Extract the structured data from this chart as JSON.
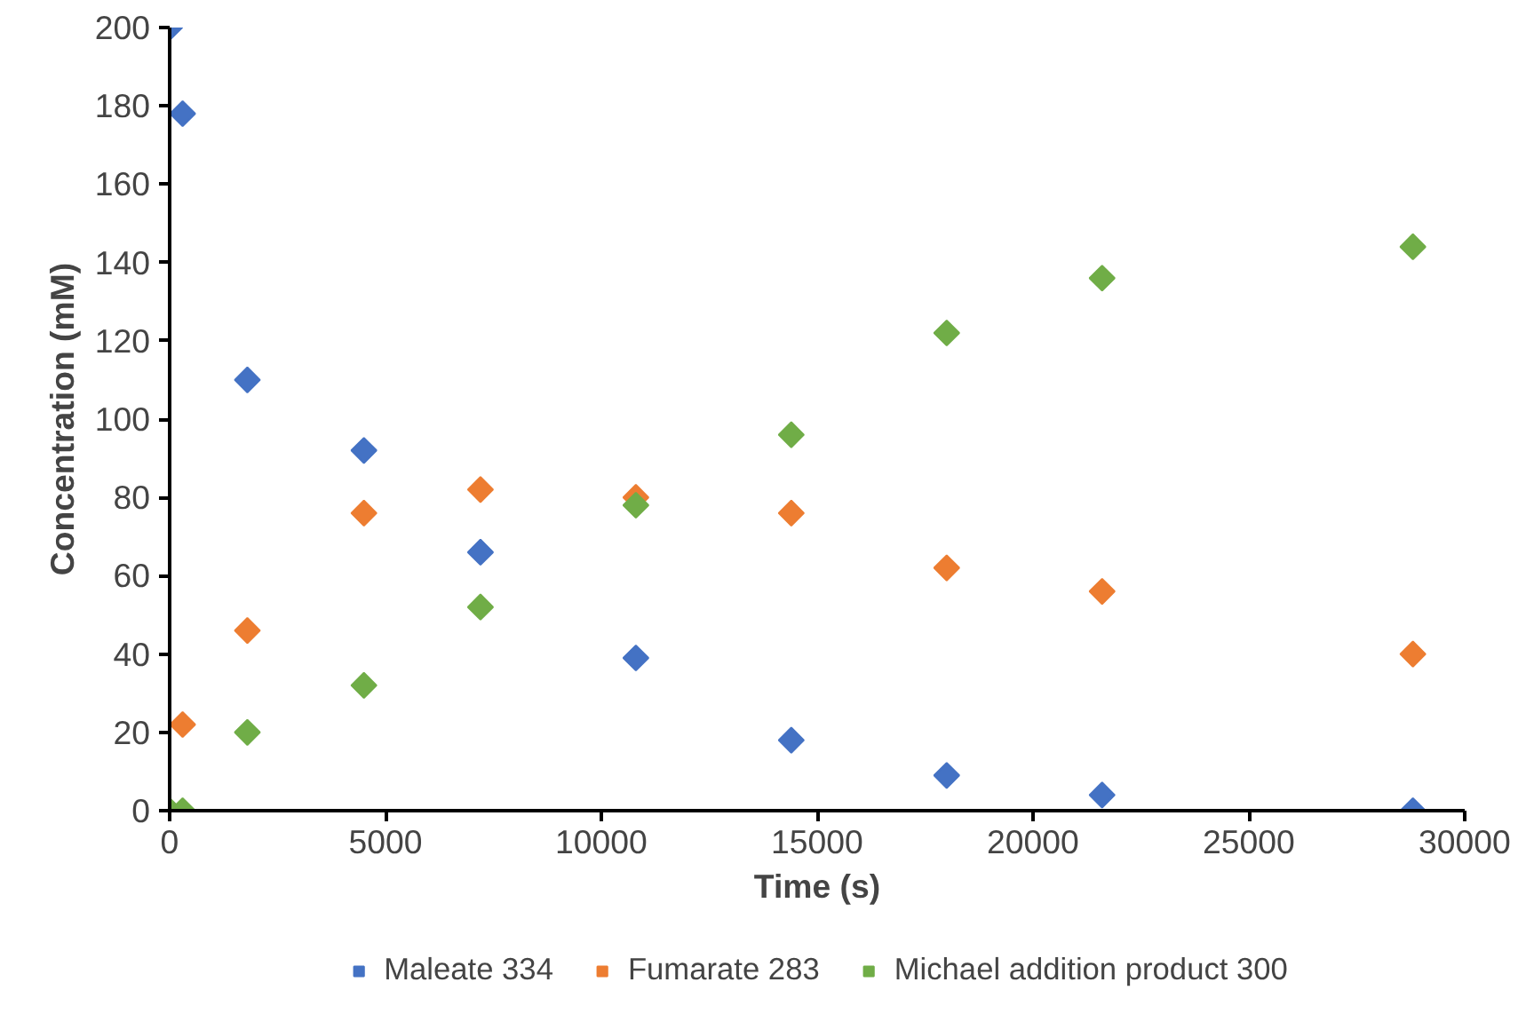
{
  "chart_data": {
    "type": "scatter",
    "xlabel": "Time (s)",
    "ylabel": "Concentration (mM)",
    "x": [
      0,
      300,
      1800,
      4500,
      7200,
      10800,
      14400,
      18000,
      21600,
      28800
    ],
    "series": [
      {
        "name": "Maleate 334",
        "color": "#4472c4",
        "values": [
          200,
          178,
          110,
          92,
          66,
          39,
          18,
          9,
          4,
          0
        ]
      },
      {
        "name": "Fumarate 283",
        "color": "#ed7d31",
        "x": [
          300,
          1800,
          4500,
          7200,
          10800,
          14400,
          18000,
          21600,
          28800
        ],
        "values": [
          22,
          46,
          76,
          82,
          80,
          76,
          62,
          56,
          40
        ]
      },
      {
        "name": "Michael addition product 300",
        "color": "#70ad47",
        "values": [
          0,
          0,
          20,
          32,
          52,
          78,
          96,
          122,
          136,
          144
        ]
      }
    ],
    "xlim": [
      0,
      30000
    ],
    "xticks": [
      0,
      5000,
      10000,
      15000,
      20000,
      25000,
      30000
    ],
    "ylim": [
      0,
      200
    ],
    "yticks": [
      0,
      20,
      40,
      60,
      80,
      100,
      120,
      140,
      160,
      180,
      200
    ],
    "marker": "diamond",
    "grid": false,
    "legend": "bottom"
  }
}
